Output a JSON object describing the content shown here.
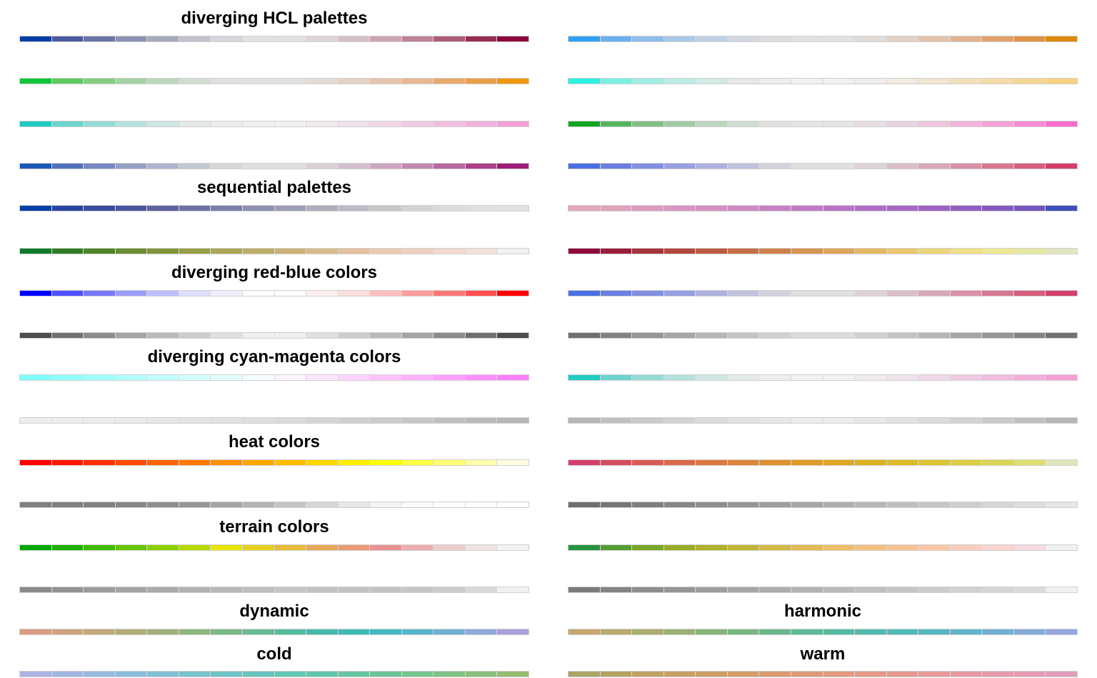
{
  "titles": {
    "diverging_hcl": "diverging HCL palettes",
    "sequential": "sequential palettes",
    "red_blue": "diverging red-blue colors",
    "cyan_magenta": "diverging cyan-magenta colors",
    "heat": "heat colors",
    "terrain": "terrain colors",
    "dynamic": "dynamic",
    "harmonic": "harmonic",
    "cold": "cold",
    "warm": "warm"
  },
  "palettes": {
    "left": [
      [
        "#023FA5",
        "#4A5BA0",
        "#6C75A6",
        "#8A90B1",
        "#A6AABE",
        "#C0C2CC",
        "#D5D6DA",
        "#E2E2E2",
        "#E2E2E2",
        "#DDD5D7",
        "#D6C0C5",
        "#CBA5AE",
        "#BE8494",
        "#AD5D75",
        "#972D52",
        "#8E063B"
      ],
      [
        "#11C638",
        "#5CC95F",
        "#84CE82",
        "#A3D3A2",
        "#BCD8BC",
        "#D2DDD2",
        "#DFE1DF",
        "#E2E2E2",
        "#E2E2E2",
        "#E3DCD8",
        "#E4D2C6",
        "#E6C4AE",
        "#E8B690",
        "#E9A96C",
        "#EA9E48",
        "#EF9708"
      ],
      [
        "#1FCCC2",
        "#6AD4CD",
        "#94DBD6",
        "#B5E1DD",
        "#CFE6E3",
        "#E3EAE9",
        "#EEEEEE",
        "#F1F1F1",
        "#F1F1F1",
        "#F0EBEE",
        "#F0E3EB",
        "#F0D8E7",
        "#F0CBE3",
        "#F1BDDF",
        "#F2AFDB",
        "#F4A0D7"
      ],
      [
        "#1D59B8",
        "#5172BB",
        "#7589C0",
        "#949FC5",
        "#AEB4CB",
        "#C4C7D1",
        "#D5D7D8",
        "#E0E0E0",
        "#E0E0E0",
        "#DAD1D7",
        "#D3BECC",
        "#CCA6C0",
        "#C38AB1",
        "#B8699F",
        "#AC4089",
        "#A01D79"
      ],
      [
        "#023FA5",
        "#27449F",
        "#3A4A9E",
        "#4D559F",
        "#5D62A2",
        "#6D71A6",
        "#7D80AB",
        "#8E8FB1",
        "#9D9EB7",
        "#ADADBE",
        "#BBBCC5",
        "#C7C8CB",
        "#D2D3D4",
        "#DADBDB",
        "#E0E0E0",
        "#E2E2E2"
      ],
      [
        "#0F7A2A",
        "#307C23",
        "#4E8427",
        "#698C30",
        "#819538",
        "#979E45",
        "#AAA656",
        "#BCAD67",
        "#CCB278",
        "#DAB98B",
        "#E4C09E",
        "#ECC8AF",
        "#F0D0C0",
        "#F2D8CF",
        "#F3E1DE",
        "#F1F1F1"
      ],
      [
        "#0000FF",
        "#4E4EFF",
        "#7878FF",
        "#9C9CFF",
        "#BEBEFF",
        "#DEDEFF",
        "#EEEEFF",
        "#FFFFFF",
        "#FFFFFF",
        "#FFEEEE",
        "#FFDEDE",
        "#FFBEBE",
        "#FF9C9C",
        "#FF7878",
        "#FF4E4E",
        "#FF0000"
      ],
      [
        "#4D4D4D",
        "#6F6F6F",
        "#8B8B8B",
        "#A4A4A4",
        "#BABABA",
        "#CECECE",
        "#E0E0E0",
        "#EFEFEF",
        "#EFEFEF",
        "#E0E0E0",
        "#CECECE",
        "#BABABA",
        "#A4A4A4",
        "#8B8B8B",
        "#6F6F6F",
        "#4D4D4D"
      ],
      [
        "#80FFFF",
        "#8FFFFF",
        "#A0FFFF",
        "#B1FFFF",
        "#C2FFFF",
        "#D3FFFF",
        "#E4FFFF",
        "#F5FFFF",
        "#FFF5FF",
        "#FFE4FF",
        "#FFD3FF",
        "#FFC2FF",
        "#FFB1FF",
        "#FFA0FF",
        "#FF8FFF",
        "#FF80FF"
      ],
      [
        "#EEEEEE",
        "#EEEEEE",
        "#EDEDED",
        "#EBEBEB",
        "#E8E8E8",
        "#E5E5E5",
        "#E2E2E2",
        "#DEDEDE",
        "#DADADA",
        "#D5D5D5",
        "#D0D0D0",
        "#CBCBCB",
        "#C6C6C6",
        "#C0C0C0",
        "#BBBBBB",
        "#B6B6B6"
      ],
      [
        "#FF0000",
        "#FF1800",
        "#FF3000",
        "#FF4800",
        "#FF6000",
        "#FF7800",
        "#FF8F00",
        "#FFA700",
        "#FFBF00",
        "#FFD700",
        "#FFEF00",
        "#FFFF0B",
        "#FFFF40",
        "#FFFF75",
        "#FFFFAA",
        "#FFFFDF"
      ],
      [
        "#7F7F7F",
        "#7F7F7F",
        "#818181",
        "#868686",
        "#8D8D8D",
        "#979797",
        "#A4A4A4",
        "#B3B3B3",
        "#C4C4C4",
        "#D6D6D6",
        "#E7E7E7",
        "#F4F4F4",
        "#FAFAFA",
        "#FCFCFC",
        "#FDFDFD",
        "#FFFFFF"
      ],
      [
        "#00A600",
        "#1DB000",
        "#3EBB00",
        "#63C600",
        "#8BD000",
        "#B6DB00",
        "#E6E600",
        "#E7CF1D",
        "#E8BA3A",
        "#E9A857",
        "#EA9A74",
        "#EB9191",
        "#ECAEAE",
        "#EDCCCC",
        "#EEE2E2",
        "#F2F2F2"
      ],
      [
        "#8A8A8A",
        "#939393",
        "#9B9B9B",
        "#A3A3A3",
        "#AAAAAA",
        "#B2B2B2",
        "#B8B8B8",
        "#BEBEBE",
        "#C6C6C6",
        "#C3C3C3",
        "#C2C2C2",
        "#C3C3C3",
        "#C6C6C6",
        "#CCCCCC",
        "#D9D9D9",
        "#F2F2F2"
      ],
      [
        "#DB9D85",
        "#CFA37F",
        "#C1A97A",
        "#B1AE78",
        "#A0B27A",
        "#8EB67F",
        "#7BB987",
        "#67BB92",
        "#54BC9E",
        "#44BCAA",
        "#3DBBB7",
        "#44B9C2",
        "#57B5CC",
        "#72B0D4",
        "#8EA9DA",
        "#A9A1DC"
      ],
      [
        "#ABB4E2",
        "#A2B7E1",
        "#97BADE",
        "#8CBDDA",
        "#81C0D4",
        "#77C2CE",
        "#6DC4C7",
        "#66C5BE",
        "#62C6B5",
        "#62C6AB",
        "#66C6A1",
        "#6DC597",
        "#76C48E",
        "#80C284",
        "#8ABF7B",
        "#94BD73"
      ]
    ],
    "right": [
      [
        "#2DA0F2",
        "#6AAFEE",
        "#8EBDEB",
        "#AAC8E7",
        "#C0D1E3",
        "#D1D8E0",
        "#DDDDDD",
        "#E2E2E2",
        "#E2E2E2",
        "#E1DCD8",
        "#E2D1C5",
        "#E2C3AC",
        "#E2B38E",
        "#E1A26B",
        "#E09245",
        "#DC8908"
      ],
      [
        "#2CF2E1",
        "#79F0E2",
        "#A0EEE3",
        "#BCECE4",
        "#D3EAE6",
        "#E4E9E7",
        "#EEEEEE",
        "#F1F1F1",
        "#F1F1F1",
        "#F0EEEC",
        "#F1EBDF",
        "#F2E6CF",
        "#F3E1BC",
        "#F5DCA7",
        "#F6D693",
        "#F8D180"
      ],
      [
        "#11A520",
        "#56B45E",
        "#80C084",
        "#A1CBA4",
        "#BDD6BF",
        "#D1DDD3",
        "#DFE2DF",
        "#E5E5E5",
        "#E5E5E5",
        "#E6DEE3",
        "#E9D3E0",
        "#EDC5DD",
        "#F1B4DA",
        "#F5A1D6",
        "#F88BD3",
        "#F96ECD"
      ],
      [
        "#4A6FE3",
        "#6A7FE3",
        "#8290E2",
        "#98A0E1",
        "#AEB1DF",
        "#C1C2DE",
        "#D2D3DC",
        "#E0E0E0",
        "#E0E0E0",
        "#DDD3D7",
        "#DBBFC8",
        "#D9A8B8",
        "#D891A6",
        "#D67891",
        "#D55F7C",
        "#D33F6A"
      ],
      [
        "#E2A8B8",
        "#E0A3BB",
        "#DD9CBE",
        "#D996C1",
        "#D58FC3",
        "#CF88C5",
        "#C981C6",
        "#C27AC7",
        "#BA73C7",
        "#B16CC7",
        "#A767C6",
        "#9D62C4",
        "#915EC2",
        "#845AC0",
        "#7357BD",
        "#3E4FB8"
      ],
      [
        "#8E063B",
        "#9A1D3A",
        "#A6323A",
        "#B2463C",
        "#BC5A40",
        "#C66E44",
        "#CF814A",
        "#D79450",
        "#DEA658",
        "#E4B761",
        "#E9C76C",
        "#EDD578",
        "#EFE185",
        "#EFE993",
        "#E6E9A2",
        "#E2E6BD"
      ],
      [
        "#4A6FE3",
        "#6A7FE3",
        "#8290E2",
        "#98A0E1",
        "#AEB1DF",
        "#C1C2DE",
        "#D2D3DC",
        "#E0E0E0",
        "#E0E0E0",
        "#DDD3D7",
        "#DBBFC8",
        "#D9A8B8",
        "#D891A6",
        "#D67891",
        "#D55F7C",
        "#D33F6A"
      ],
      [
        "#6F6F6F",
        "#838383",
        "#959595",
        "#A6A6A6",
        "#B6B6B6",
        "#C4C4C4",
        "#D1D1D1",
        "#DCDCDC",
        "#DCDCDC",
        "#D1D1D1",
        "#C4C4C4",
        "#B6B6B6",
        "#A6A6A6",
        "#959595",
        "#838383",
        "#6F6F6F"
      ],
      [
        "#1FCCC2",
        "#6AD4CD",
        "#94DBD6",
        "#B5E1DD",
        "#CFE6E3",
        "#E3EAE9",
        "#EEEEEE",
        "#F1F1F1",
        "#F1F1F1",
        "#F0EBEE",
        "#F0E3EB",
        "#F0D8E7",
        "#F0CBE3",
        "#F1BDDF",
        "#F2AFDB",
        "#F4A0D7"
      ],
      [
        "#B6B6B6",
        "#C0C0C0",
        "#CACACA",
        "#D3D3D3",
        "#DBDBDB",
        "#E2E2E2",
        "#E8E8E8",
        "#EDEDED",
        "#EDEDED",
        "#E8E8E8",
        "#E2E2E2",
        "#DBDBDB",
        "#D3D3D3",
        "#CACACA",
        "#C0C0C0",
        "#B6B6B6"
      ],
      [
        "#D33F6A",
        "#D64E5F",
        "#D85C55",
        "#DA6A4A",
        "#DC7740",
        "#DD8436",
        "#DE902C",
        "#DF9B24",
        "#DFA61F",
        "#DEB11E",
        "#DDBB24",
        "#DCC530",
        "#DCCE41",
        "#DCD656",
        "#DDDF6E",
        "#E2E6BD"
      ],
      [
        "#6E6E6E",
        "#767676",
        "#7E7E7E",
        "#868686",
        "#8E8E8E",
        "#969696",
        "#9E9E9E",
        "#A6A6A6",
        "#AEAEAE",
        "#B6B6B6",
        "#BEBEBE",
        "#C6C6C6",
        "#CECECE",
        "#D6D6D6",
        "#DEDEDE",
        "#E6E6E6"
      ],
      [
        "#24943D",
        "#549E33",
        "#78A62B",
        "#96AC27",
        "#AFB12A",
        "#C3B534",
        "#D4B842",
        "#E2BB54",
        "#EDBD68",
        "#F4C07D",
        "#F8C393",
        "#FAC7A8",
        "#FACDBD",
        "#F8D3CF",
        "#F5DADF",
        "#F1F1F1"
      ],
      [
        "#7B7B7B",
        "#848484",
        "#8D8D8D",
        "#959595",
        "#9D9D9D",
        "#A5A5A5",
        "#ACACAC",
        "#B3B3B3",
        "#BABABA",
        "#C0C0C0",
        "#C6C6C6",
        "#CCCCCC",
        "#D1D1D1",
        "#D6D6D6",
        "#DBDBDB",
        "#F1F1F1"
      ],
      [
        "#C7A76C",
        "#B9AA6C",
        "#AAAE6E",
        "#99B172",
        "#89B47A",
        "#79B683",
        "#6AB88D",
        "#5DB998",
        "#54BAA3",
        "#4FBAAE",
        "#50B9B9",
        "#56B7C3",
        "#62B4CC",
        "#71B0D4",
        "#82ABDA",
        "#93A6DE"
      ],
      [
        "#ACA465",
        "#B6A363",
        "#BFA263",
        "#C7A064",
        "#CE9E67",
        "#D59D6B",
        "#DA9B71",
        "#DE9A78",
        "#E29980",
        "#E49888",
        "#E69891",
        "#E79899",
        "#E799A2",
        "#E69AAB",
        "#E49CB3",
        "#E29EBB"
      ]
    ]
  }
}
